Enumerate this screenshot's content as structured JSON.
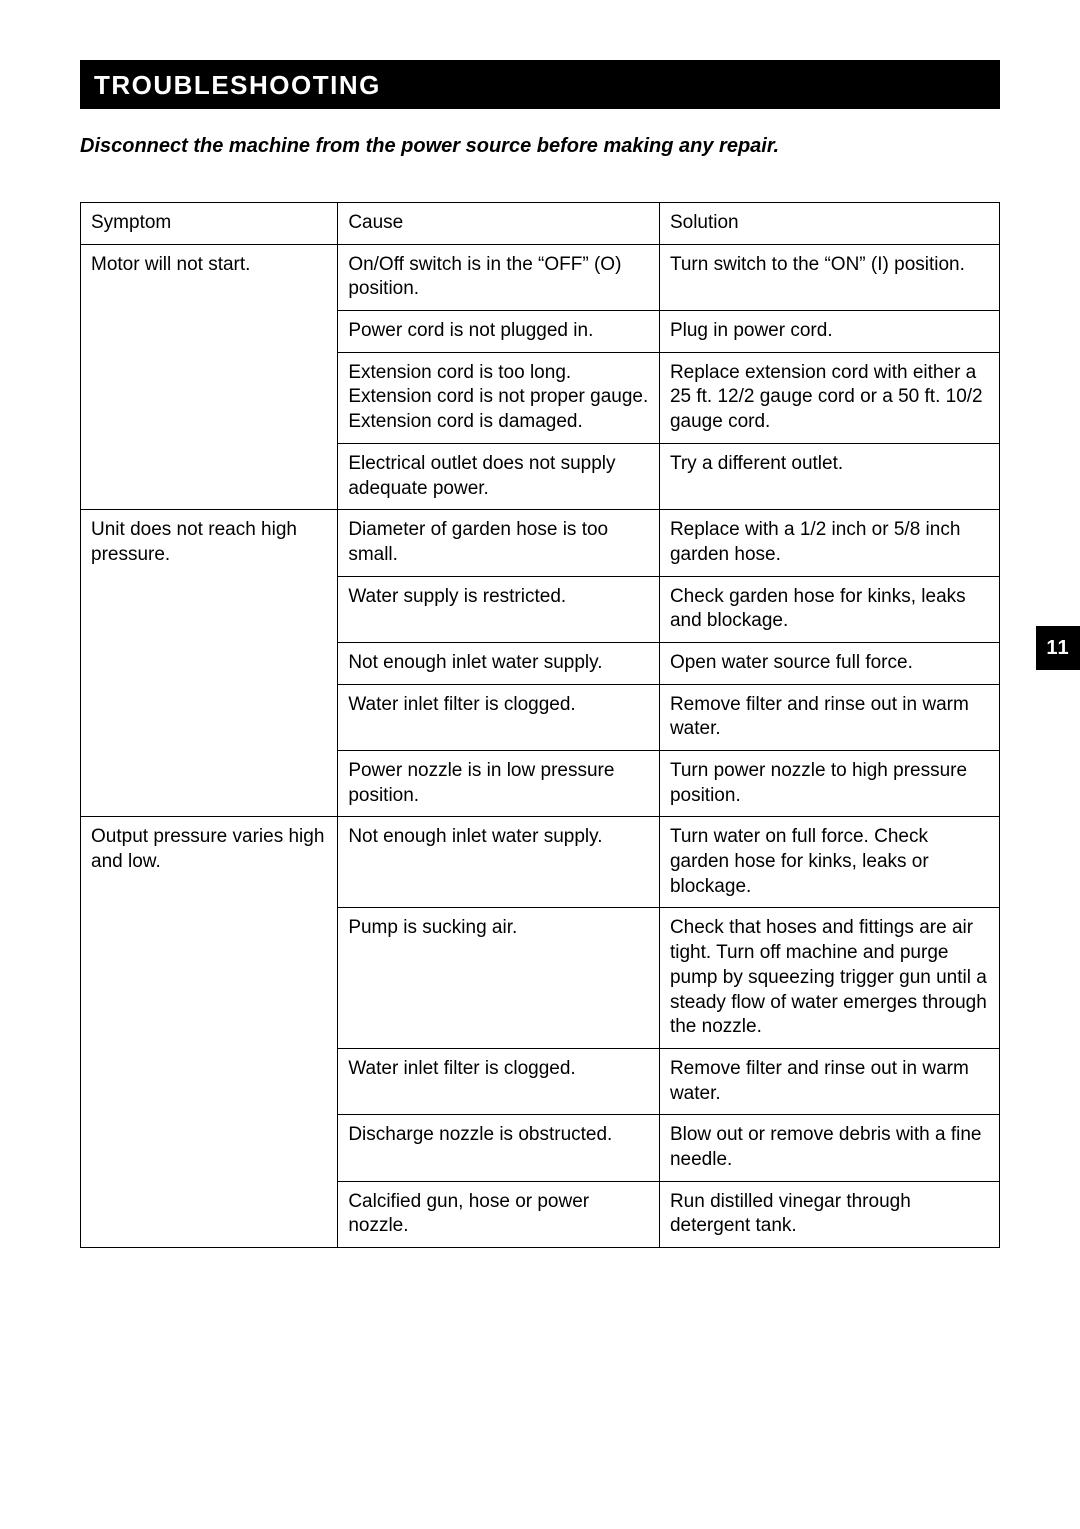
{
  "section_title": "TROUBLESHOOTING",
  "warning_text": "Disconnect the machine from the power source before making any repair.",
  "page_number": "11",
  "table": {
    "columns": [
      "Symptom",
      "Cause",
      "Solution"
    ],
    "groups": [
      {
        "symptom": "Motor will not start.",
        "rows": [
          {
            "cause": "On/Off switch is in the “OFF” (O) position.",
            "solution": "Turn switch to the “ON” (I) position."
          },
          {
            "cause": "Power cord is not plugged in.",
            "solution": "Plug in power cord."
          },
          {
            "cause": "Extension cord is too long. Extension cord is not proper gauge. Extension cord is damaged.",
            "solution": "Replace extension cord with either a 25 ft. 12/2 gauge cord or a 50 ft. 10/2 gauge cord."
          },
          {
            "cause": "Electrical outlet does not supply adequate power.",
            "solution": "Try a different outlet."
          }
        ]
      },
      {
        "symptom": "Unit does not reach high pressure.",
        "rows": [
          {
            "cause": "Diameter of garden hose is too small.",
            "solution": "Replace with a 1/2 inch or 5/8 inch garden hose."
          },
          {
            "cause": "Water supply is restricted.",
            "solution": "Check garden hose for kinks, leaks and blockage."
          },
          {
            "cause": "Not enough inlet water supply.",
            "solution": "Open water source full force."
          },
          {
            "cause": "Water inlet filter is clogged.",
            "solution": "Remove filter and rinse out in warm water."
          },
          {
            "cause": "Power nozzle is in low pressure position.",
            "solution": "Turn power nozzle to high pressure position."
          }
        ]
      },
      {
        "symptom": "Output pressure varies high and low.",
        "rows": [
          {
            "cause": "Not enough inlet water supply.",
            "solution": "Turn water on full force. Check garden hose for kinks, leaks or blockage."
          },
          {
            "cause": "Pump is sucking air.",
            "solution": "Check that hoses and fittings are air tight. Turn off machine and purge pump by squeezing trigger gun until a steady flow of water emerges through the nozzle."
          },
          {
            "cause": "Water inlet filter is clogged.",
            "solution": "Remove filter and rinse out in warm water."
          },
          {
            "cause": "Discharge nozzle is obstructed.",
            "solution": "Blow out or remove debris with a fine needle."
          },
          {
            "cause": "Calcified gun, hose or  power nozzle.",
            "solution": "Run distilled vinegar through detergent tank."
          }
        ]
      }
    ]
  }
}
